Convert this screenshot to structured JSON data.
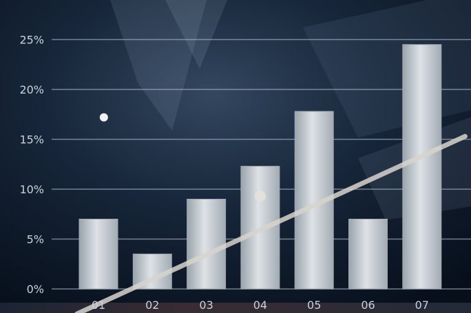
{
  "chart_data": {
    "type": "bar",
    "categories": [
      "01",
      "02",
      "03",
      "04",
      "05",
      "06",
      "07"
    ],
    "values": [
      7,
      3.5,
      9,
      12.3,
      17.8,
      7,
      24.5
    ],
    "y_ticks": [
      "0%",
      "5%",
      "10%",
      "15%",
      "20%",
      "25%"
    ],
    "ylim": [
      0,
      28
    ],
    "grid": true,
    "trend_line": {
      "start": [
        0.6,
        -2.5
      ],
      "end": [
        7.8,
        15.3
      ]
    },
    "trend_markers": [
      {
        "x": 4,
        "y": 9.3
      }
    ],
    "stray_point": {
      "x": 1.1,
      "y": 17.2
    },
    "colors": {
      "background": "#0b1727",
      "bar": "#c8ced4",
      "grid": "#aab6c4",
      "tick": "#c9d2dc",
      "trend": "#d7d3cb"
    }
  }
}
